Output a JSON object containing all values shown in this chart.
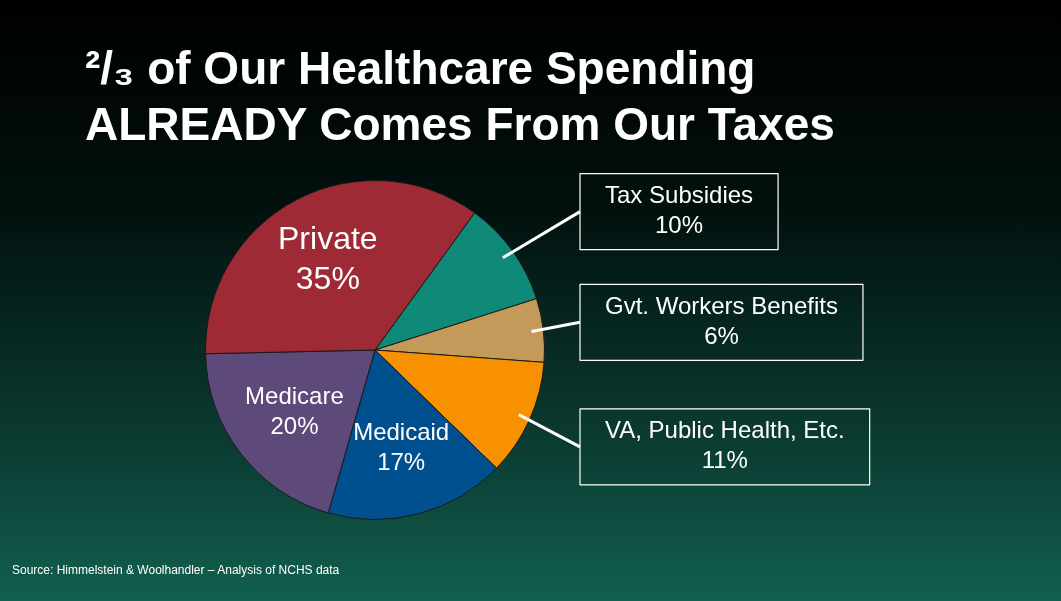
{
  "chart_data": {
    "type": "pie",
    "title": "²/₃ of Our Healthcare Spending ALREADY Comes From Our Taxes",
    "categories": [
      "Tax Subsidies",
      "Gvt. Workers Benefits",
      "VA, Public Health, Etc.",
      "Medicaid",
      "Medicare",
      "Private"
    ],
    "values": [
      10,
      6,
      11,
      17,
      20,
      35
    ],
    "value_labels": [
      "10%",
      "6%",
      "11%",
      "17%",
      "20%",
      "35%"
    ],
    "colors": [
      "#0f8a78",
      "#c49a5a",
      "#f79100",
      "#00508f",
      "#5e4a7a",
      "#9e2a35"
    ],
    "annotations": [
      "Source: Himmelstein & Woolhandler – Analysis of NCHS data"
    ],
    "legend": false
  }
}
